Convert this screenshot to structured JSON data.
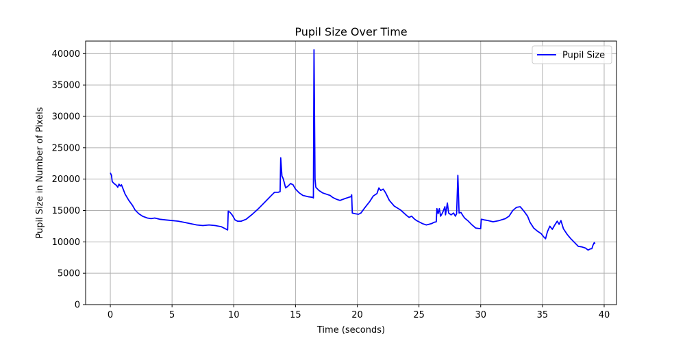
{
  "chart_data": {
    "type": "line",
    "title": "Pupil Size Over Time",
    "xlabel": "Time (seconds)",
    "ylabel": "Pupil Size in Number of Pixels",
    "xlim": [
      -2,
      41
    ],
    "ylim": [
      0,
      42000
    ],
    "xticks": [
      0,
      5,
      10,
      15,
      20,
      25,
      30,
      35,
      40
    ],
    "yticks": [
      0,
      5000,
      10000,
      15000,
      20000,
      25000,
      30000,
      35000,
      40000
    ],
    "grid": true,
    "legend_position": "top-right",
    "series": [
      {
        "name": "Pupil Size",
        "color": "#0000ff",
        "points": [
          [
            0.0,
            21000
          ],
          [
            0.1,
            20600
          ],
          [
            0.15,
            19600
          ],
          [
            0.3,
            19300
          ],
          [
            0.5,
            19000
          ],
          [
            0.6,
            18700
          ],
          [
            0.7,
            19200
          ],
          [
            0.8,
            18900
          ],
          [
            0.9,
            19100
          ],
          [
            1.0,
            18600
          ],
          [
            1.2,
            17600
          ],
          [
            1.5,
            16600
          ],
          [
            1.8,
            15800
          ],
          [
            2.0,
            15100
          ],
          [
            2.3,
            14500
          ],
          [
            2.6,
            14100
          ],
          [
            3.0,
            13800
          ],
          [
            3.3,
            13700
          ],
          [
            3.6,
            13800
          ],
          [
            4.0,
            13600
          ],
          [
            4.5,
            13500
          ],
          [
            5.0,
            13400
          ],
          [
            5.5,
            13300
          ],
          [
            6.0,
            13100
          ],
          [
            6.5,
            12900
          ],
          [
            7.0,
            12700
          ],
          [
            7.5,
            12600
          ],
          [
            8.0,
            12700
          ],
          [
            8.5,
            12600
          ],
          [
            9.0,
            12400
          ],
          [
            9.3,
            12100
          ],
          [
            9.5,
            11900
          ],
          [
            9.55,
            14900
          ],
          [
            9.7,
            14700
          ],
          [
            9.9,
            14200
          ],
          [
            10.1,
            13500
          ],
          [
            10.3,
            13300
          ],
          [
            10.6,
            13300
          ],
          [
            11.0,
            13600
          ],
          [
            11.5,
            14400
          ],
          [
            12.0,
            15300
          ],
          [
            12.5,
            16300
          ],
          [
            13.0,
            17300
          ],
          [
            13.3,
            17900
          ],
          [
            13.6,
            17900
          ],
          [
            13.75,
            18000
          ],
          [
            13.8,
            23400
          ],
          [
            13.9,
            20500
          ],
          [
            14.0,
            20100
          ],
          [
            14.2,
            18600
          ],
          [
            14.4,
            18900
          ],
          [
            14.6,
            19300
          ],
          [
            14.8,
            19100
          ],
          [
            15.0,
            18400
          ],
          [
            15.3,
            17800
          ],
          [
            15.6,
            17400
          ],
          [
            16.0,
            17200
          ],
          [
            16.4,
            17100
          ],
          [
            16.45,
            17000
          ],
          [
            16.5,
            40600
          ],
          [
            16.58,
            20000
          ],
          [
            16.65,
            18700
          ],
          [
            16.9,
            18200
          ],
          [
            17.2,
            17800
          ],
          [
            17.5,
            17600
          ],
          [
            17.8,
            17400
          ],
          [
            18.0,
            17100
          ],
          [
            18.3,
            16800
          ],
          [
            18.6,
            16600
          ],
          [
            19.0,
            16900
          ],
          [
            19.3,
            17100
          ],
          [
            19.5,
            17200
          ],
          [
            19.55,
            17500
          ],
          [
            19.6,
            14600
          ],
          [
            19.8,
            14500
          ],
          [
            20.1,
            14400
          ],
          [
            20.3,
            14600
          ],
          [
            20.6,
            15400
          ],
          [
            21.0,
            16400
          ],
          [
            21.3,
            17300
          ],
          [
            21.6,
            17700
          ],
          [
            21.75,
            18600
          ],
          [
            21.9,
            18200
          ],
          [
            22.1,
            18400
          ],
          [
            22.3,
            17800
          ],
          [
            22.6,
            16600
          ],
          [
            23.0,
            15700
          ],
          [
            23.5,
            15100
          ],
          [
            24.0,
            14200
          ],
          [
            24.2,
            13900
          ],
          [
            24.4,
            14100
          ],
          [
            24.6,
            13700
          ],
          [
            24.8,
            13400
          ],
          [
            25.0,
            13200
          ],
          [
            25.3,
            12900
          ],
          [
            25.6,
            12700
          ],
          [
            26.0,
            12900
          ],
          [
            26.2,
            13100
          ],
          [
            26.4,
            13200
          ],
          [
            26.45,
            15300
          ],
          [
            26.55,
            14500
          ],
          [
            26.65,
            15300
          ],
          [
            26.75,
            14100
          ],
          [
            26.9,
            14600
          ],
          [
            27.1,
            15600
          ],
          [
            27.15,
            14300
          ],
          [
            27.3,
            16200
          ],
          [
            27.4,
            14600
          ],
          [
            27.6,
            14300
          ],
          [
            27.8,
            14600
          ],
          [
            27.95,
            14100
          ],
          [
            28.05,
            14500
          ],
          [
            28.15,
            20600
          ],
          [
            28.25,
            14600
          ],
          [
            28.4,
            14700
          ],
          [
            28.55,
            14200
          ],
          [
            28.7,
            13800
          ],
          [
            29.0,
            13300
          ],
          [
            29.3,
            12700
          ],
          [
            29.6,
            12200
          ],
          [
            30.0,
            12100
          ],
          [
            30.05,
            13600
          ],
          [
            30.3,
            13500
          ],
          [
            30.6,
            13400
          ],
          [
            31.0,
            13200
          ],
          [
            31.5,
            13400
          ],
          [
            32.0,
            13700
          ],
          [
            32.3,
            14100
          ],
          [
            32.6,
            15000
          ],
          [
            32.9,
            15500
          ],
          [
            33.2,
            15600
          ],
          [
            33.5,
            14900
          ],
          [
            33.8,
            14100
          ],
          [
            34.0,
            13100
          ],
          [
            34.3,
            12200
          ],
          [
            34.6,
            11700
          ],
          [
            34.9,
            11300
          ],
          [
            35.1,
            10800
          ],
          [
            35.25,
            10500
          ],
          [
            35.4,
            11600
          ],
          [
            35.6,
            12500
          ],
          [
            35.8,
            12000
          ],
          [
            36.0,
            12700
          ],
          [
            36.2,
            13300
          ],
          [
            36.35,
            12800
          ],
          [
            36.5,
            13400
          ],
          [
            36.7,
            12100
          ],
          [
            37.0,
            11200
          ],
          [
            37.3,
            10500
          ],
          [
            37.6,
            9900
          ],
          [
            37.9,
            9300
          ],
          [
            38.2,
            9200
          ],
          [
            38.5,
            9000
          ],
          [
            38.7,
            8700
          ],
          [
            38.9,
            8900
          ],
          [
            39.0,
            8900
          ],
          [
            39.1,
            9500
          ],
          [
            39.2,
            9900
          ],
          [
            39.25,
            9700
          ]
        ]
      }
    ]
  }
}
